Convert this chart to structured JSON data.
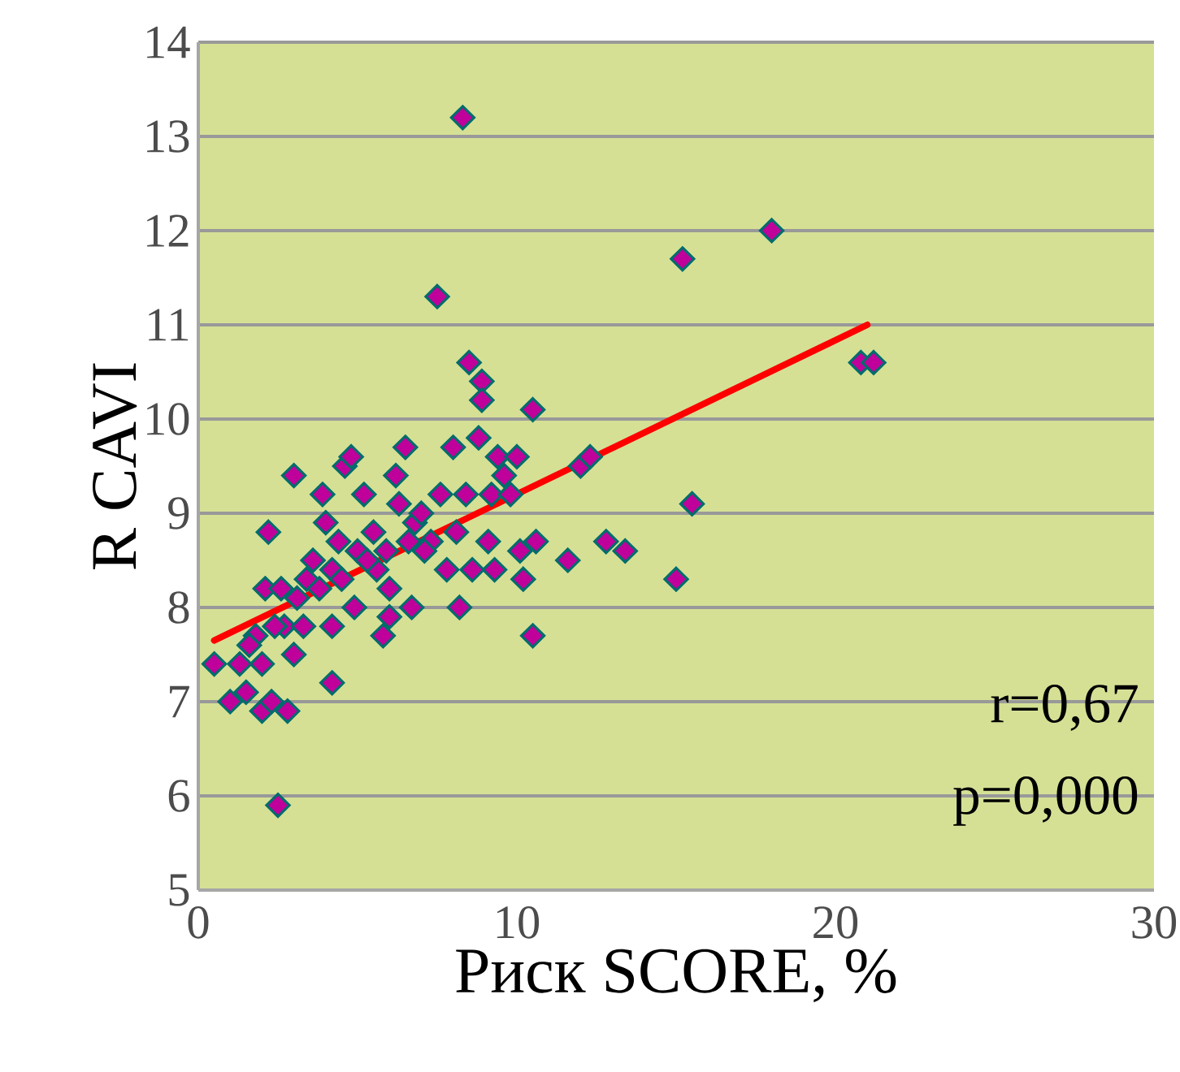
{
  "chart_data": {
    "type": "scatter",
    "xlabel": "Риск SCORE, %",
    "ylabel": "R CAVI",
    "xlim": [
      0,
      30
    ],
    "xticks": [
      0,
      10,
      20,
      30
    ],
    "ylim": [
      5,
      14
    ],
    "yticks": [
      5,
      6,
      7,
      8,
      9,
      10,
      11,
      12,
      13,
      14
    ],
    "grid": "y",
    "annotations": [
      "r=0,67",
      "p=0,000"
    ],
    "series": [
      {
        "marker": "diamond",
        "color": "#c0009a",
        "x": [
          0.5,
          1,
          1.3,
          1.5,
          1.8,
          2,
          2,
          2.2,
          2.1,
          2.3,
          2.5,
          2.6,
          2.7,
          2.8,
          3,
          3,
          3.3,
          3.4,
          3.6,
          3.9,
          4,
          4.2,
          4.2,
          4.2,
          4.4,
          4.6,
          4.8,
          4.9,
          5,
          5.2,
          5.5,
          5.6,
          5.8,
          6,
          6,
          6.2,
          6.3,
          6.5,
          6.7,
          6.8,
          7,
          7.3,
          7.5,
          7.6,
          7.8,
          8,
          8.2,
          8.4,
          8.3,
          8.5,
          8.6,
          8.8,
          8.9,
          8.9,
          9.1,
          9.2,
          9.3,
          9.4,
          9.6,
          9.8,
          10,
          10.1,
          10.2,
          10.5,
          10.6,
          10.5,
          11.6,
          12,
          12.3,
          12.8,
          13.4,
          15,
          15.2,
          15.5,
          18,
          20.8,
          21.2,
          1.6,
          2.4,
          3.1,
          3.8,
          4.5,
          5.3,
          5.9,
          6.6,
          7.1,
          8.1
        ],
        "values": [
          7.4,
          7.0,
          7.4,
          7.1,
          7.7,
          7.4,
          6.9,
          8.8,
          8.2,
          7.0,
          5.9,
          8.2,
          7.8,
          6.9,
          7.5,
          9.4,
          7.8,
          8.3,
          8.5,
          9.2,
          8.9,
          8.4,
          7.8,
          7.2,
          8.7,
          9.5,
          9.6,
          8.0,
          8.6,
          9.2,
          8.8,
          8.4,
          7.7,
          7.9,
          8.2,
          9.4,
          9.1,
          9.7,
          8.0,
          8.9,
          9.0,
          8.7,
          11.3,
          9.2,
          8.4,
          9.7,
          8.0,
          9.2,
          13.2,
          10.6,
          8.4,
          9.8,
          10.4,
          10.2,
          8.7,
          9.2,
          8.4,
          9.6,
          9.4,
          9.2,
          9.6,
          8.6,
          8.3,
          10.1,
          8.7,
          7.7,
          8.5,
          9.5,
          9.6,
          8.7,
          8.6,
          8.3,
          11.7,
          9.1,
          12.0,
          10.6,
          10.6,
          7.6,
          7.8,
          8.1,
          8.2,
          8.3,
          8.5,
          8.6,
          8.7,
          8.6,
          8.8
        ]
      },
      {
        "type": "line",
        "color": "#ff0000",
        "x": [
          0.5,
          21
        ],
        "values": [
          7.65,
          11.0
        ]
      }
    ]
  }
}
